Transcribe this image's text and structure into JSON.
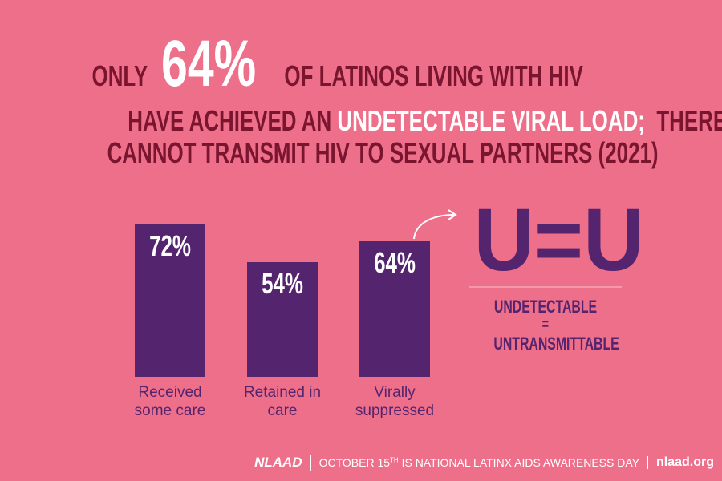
{
  "headline": {
    "line1": [
      "ONLY",
      "64%",
      "OF LATINOS LIVING WITH HIV"
    ],
    "line2": [
      "HAVE ACHIEVED AN",
      "UNDETECTABLE VIRAL LOAD;",
      "THEREFORE"
    ],
    "line3": "CANNOT TRANSMIT HIV TO SEXUAL PARTNERS (2021)"
  },
  "chart_data": {
    "type": "bar",
    "color": "#55246e",
    "categories": [
      "Received some care",
      "Retained in care",
      "Virally suppressed"
    ],
    "values": [
      72,
      54,
      64
    ],
    "value_labels": [
      "72%",
      "54%",
      "64%"
    ]
  },
  "uu": {
    "symbol": "U=U",
    "top": "UNDETECTABLE",
    "equals": "=",
    "bottom": "UNTRANSMITTABLE"
  },
  "footer": {
    "logo": "NLAAD",
    "text_start": "OCTOBER 15",
    "superscript": "TH",
    "text_end": "IS NATIONAL LATINX AIDS AWARENESS DAY",
    "site": "nlaad.org"
  }
}
